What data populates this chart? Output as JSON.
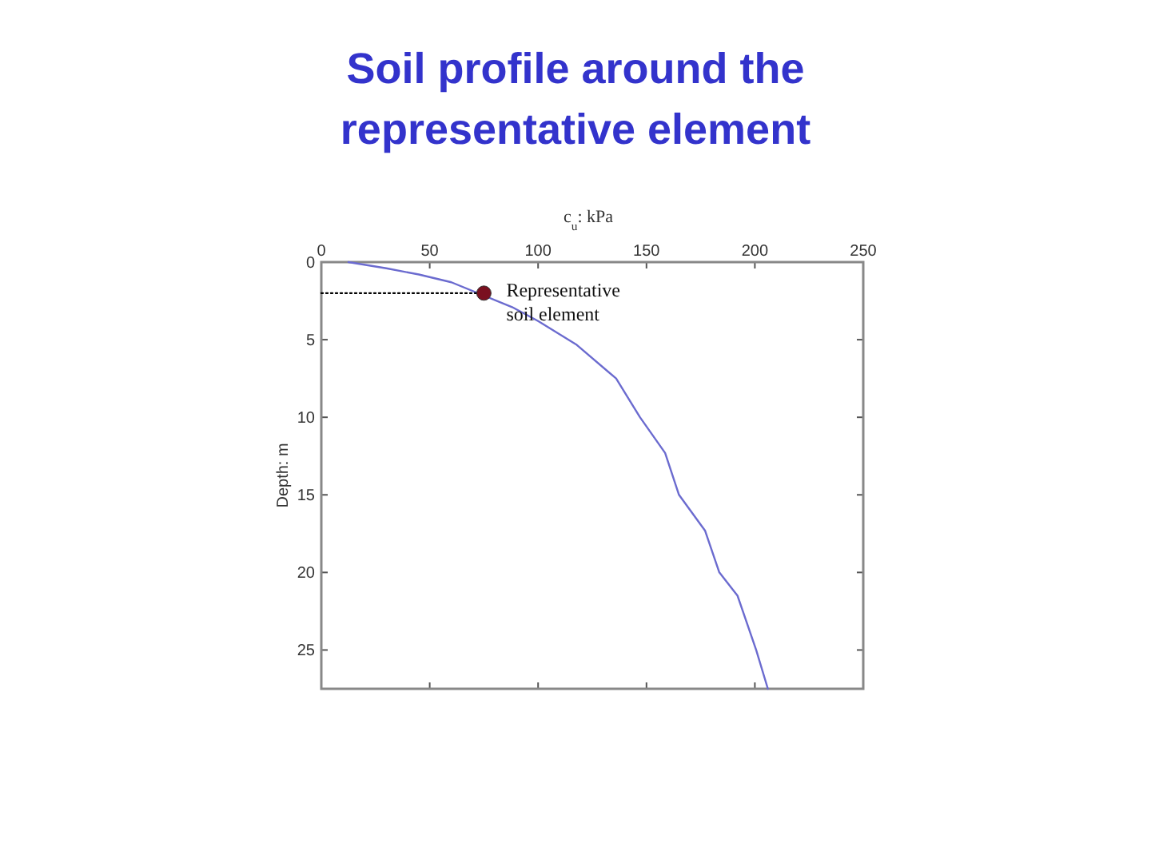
{
  "chart_data": {
    "type": "line",
    "title": "Soil profile around the representative element",
    "xlabel": "c$_{u}$: kPa",
    "ylabel": "Depth: m",
    "xlim": [
      0,
      250
    ],
    "xticks": [
      0,
      50,
      100,
      150,
      200,
      250
    ],
    "ylim": [
      27.5,
      0
    ],
    "yticks": [
      0,
      5,
      10,
      15,
      20,
      25
    ],
    "series": [
      {
        "color": "#6b6bcf",
        "x": [
          12.5,
          30,
          45,
          60,
          88,
          100,
          117.5,
          136,
          147,
          158.6,
          165,
          177,
          183.6,
          192,
          200.6,
          206
        ],
        "values": [
          0,
          0.4,
          0.8,
          1.3,
          2.9,
          3.8,
          5.3,
          7.5,
          10,
          12.3,
          15,
          17.3,
          20,
          21.5,
          25,
          27.5
        ]
      },
      {
        "color": "#000000",
        "line_style": "dotted",
        "x": [
          0,
          75
        ],
        "values": [
          2,
          2
        ]
      },
      {
        "type": "scatter",
        "color": "#7a1020",
        "marker": "circle",
        "x": [
          75
        ],
        "values": [
          2
        ]
      }
    ],
    "annotations": [
      {
        "text": "Representative soil element",
        "x": 75,
        "y": 2
      }
    ]
  }
}
